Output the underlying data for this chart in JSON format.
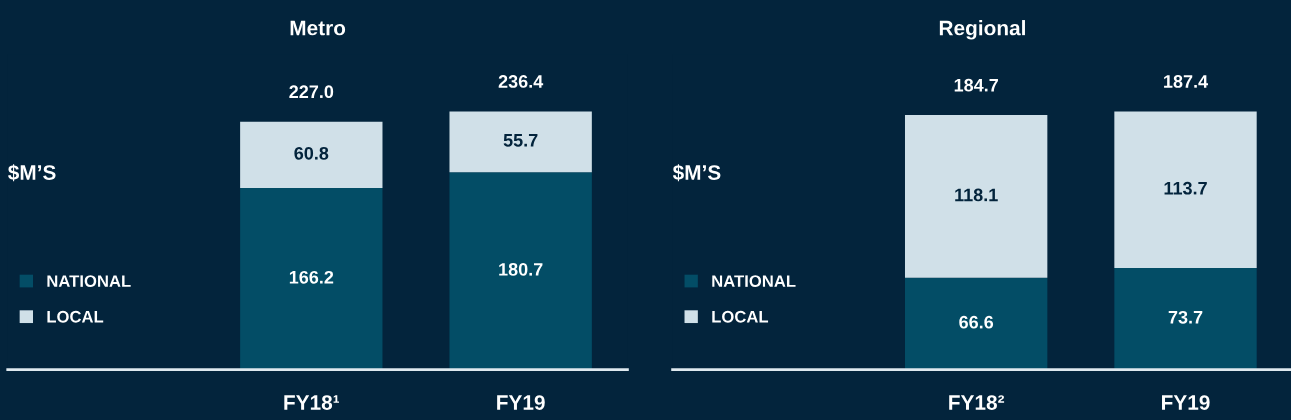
{
  "chart_data": [
    {
      "type": "bar",
      "title": "Metro",
      "ylabel": "$M’S",
      "categories": [
        "FY18¹",
        "FY19"
      ],
      "stacked": true,
      "data_labels": true,
      "totals": [
        "227.0",
        "236.4"
      ],
      "legend": "left",
      "tick_labels": "x",
      "grid": false,
      "series": [
        {
          "name": "NATIONAL",
          "color": "#034d66",
          "values": [
            166.2,
            180.7
          ]
        },
        {
          "name": "LOCAL",
          "color": "#d0e0e8",
          "values": [
            60.8,
            55.7
          ]
        }
      ]
    },
    {
      "type": "bar",
      "title": "Regional",
      "ylabel": "$M’S",
      "categories": [
        "FY18²",
        "FY19"
      ],
      "stacked": true,
      "data_labels": true,
      "totals": [
        "184.7",
        "187.4"
      ],
      "legend": "left",
      "tick_labels": "x",
      "grid": false,
      "series": [
        {
          "name": "NATIONAL",
          "color": "#034d66",
          "values": [
            66.6,
            73.7
          ]
        },
        {
          "name": "LOCAL",
          "color": "#d0e0e8",
          "values": [
            118.1,
            113.7
          ]
        }
      ]
    }
  ]
}
